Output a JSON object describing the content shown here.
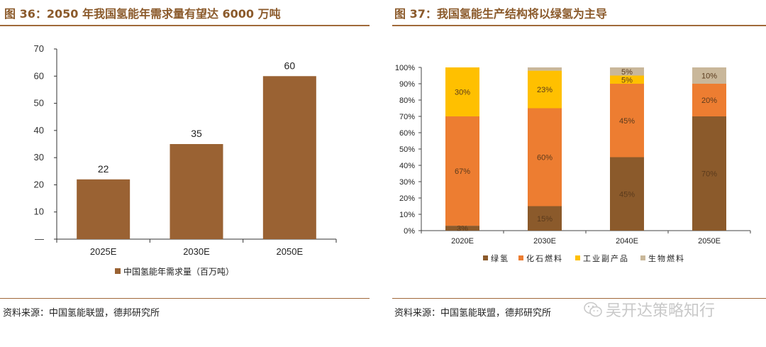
{
  "left": {
    "title": "图 36：2050 年我国氢能年需求量有望达 6000 万吨",
    "source": "资料来源：中国氢能联盟，德邦研究所"
  },
  "right": {
    "title": "图 37：我国氢能生产结构将以绿氢为主导",
    "source": "资料来源：中国氢能联盟，德邦研究所"
  },
  "watermark": {
    "text": "吴开达策略知行",
    "icon": "wechat-icon"
  },
  "colors": {
    "brown": "#8B5A2B",
    "bar_brown": "#9A6233",
    "orange": "#ED7D31",
    "yellow": "#FFC000",
    "tan": "#C9B79A"
  },
  "chart_data": [
    {
      "type": "bar",
      "categories": [
        "2025E",
        "2030E",
        "2050E"
      ],
      "values": [
        22,
        35,
        60
      ],
      "value_labels": [
        "22",
        "35",
        "60"
      ],
      "ylim": [
        0,
        70
      ],
      "yticks": [
        "—",
        "10",
        "20",
        "30",
        "40",
        "50",
        "60",
        "70"
      ],
      "legend": [
        "中国氢能年需求量（百万吨）"
      ],
      "legend_position": "bottom"
    },
    {
      "type": "bar",
      "stacked": true,
      "categories": [
        "2020E",
        "2030E",
        "2040E",
        "2050E"
      ],
      "ylim": [
        0,
        100
      ],
      "yticks": [
        "0%",
        "10%",
        "20%",
        "30%",
        "40%",
        "50%",
        "60%",
        "70%",
        "80%",
        "90%",
        "100%"
      ],
      "series": [
        {
          "name": "绿氢",
          "values": [
            3,
            15,
            45,
            70
          ],
          "labels": [
            "3%",
            "15%",
            "45%",
            "70%"
          ]
        },
        {
          "name": "化石燃料",
          "values": [
            67,
            60,
            45,
            20
          ],
          "labels": [
            "67%",
            "60%",
            "45%",
            "20%"
          ]
        },
        {
          "name": "工业副产品",
          "values": [
            30,
            23,
            5,
            0
          ],
          "labels": [
            "30%",
            "23%",
            "5%",
            ""
          ]
        },
        {
          "name": "生物燃料",
          "values": [
            0,
            2,
            5,
            10
          ],
          "labels": [
            "",
            "",
            "5%",
            "10%"
          ]
        }
      ],
      "legend_position": "bottom"
    }
  ]
}
